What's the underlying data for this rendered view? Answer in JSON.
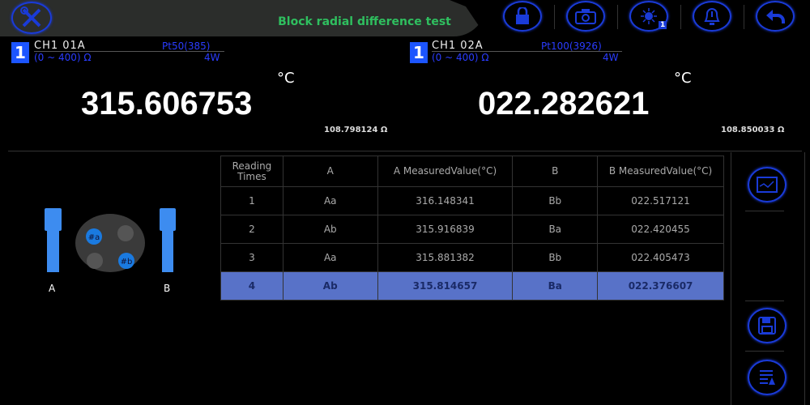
{
  "header": {
    "title": "Block radial difference test",
    "icons": [
      "tools-icon",
      "lock-icon",
      "camera-icon",
      "brightness-icon",
      "alarm-bell-icon",
      "back-arrow-icon"
    ],
    "brightness_badge": "1"
  },
  "channels": [
    {
      "badge": "1",
      "name": "CH1  01A",
      "sensor": "Pt50(385)",
      "range": "(0 ~ 400) Ω",
      "wire": "4W",
      "value": "315.606753",
      "unit": "°C",
      "resistance": "108.798124 Ω"
    },
    {
      "badge": "1",
      "name": "CH1  02A",
      "sensor": "Pt100(3926)",
      "range": "(0 ~ 400) Ω",
      "wire": "4W",
      "value": "022.282621",
      "unit": "°C",
      "resistance": "108.850033 Ω"
    }
  ],
  "diagram": {
    "label_a": "A",
    "label_b": "B",
    "hole_a": "#a",
    "hole_b": "#b"
  },
  "table": {
    "headers": [
      "Reading Times",
      "A",
      "A MeasuredValue(°C)",
      "B",
      "B MeasuredValue(°C)"
    ],
    "rows": [
      [
        "1",
        "Aa",
        "316.148341",
        "Bb",
        "022.517121"
      ],
      [
        "2",
        "Ab",
        "315.916839",
        "Ba",
        "022.420455"
      ],
      [
        "3",
        "Aa",
        "315.881382",
        "Bb",
        "022.405473"
      ],
      [
        "4",
        "Ab",
        "315.814657",
        "Ba",
        "022.376607"
      ]
    ],
    "selected_row": 4
  },
  "colors": {
    "accent": "#1a3bd8",
    "title": "#2fbf5f",
    "selected": "#5872c8"
  }
}
